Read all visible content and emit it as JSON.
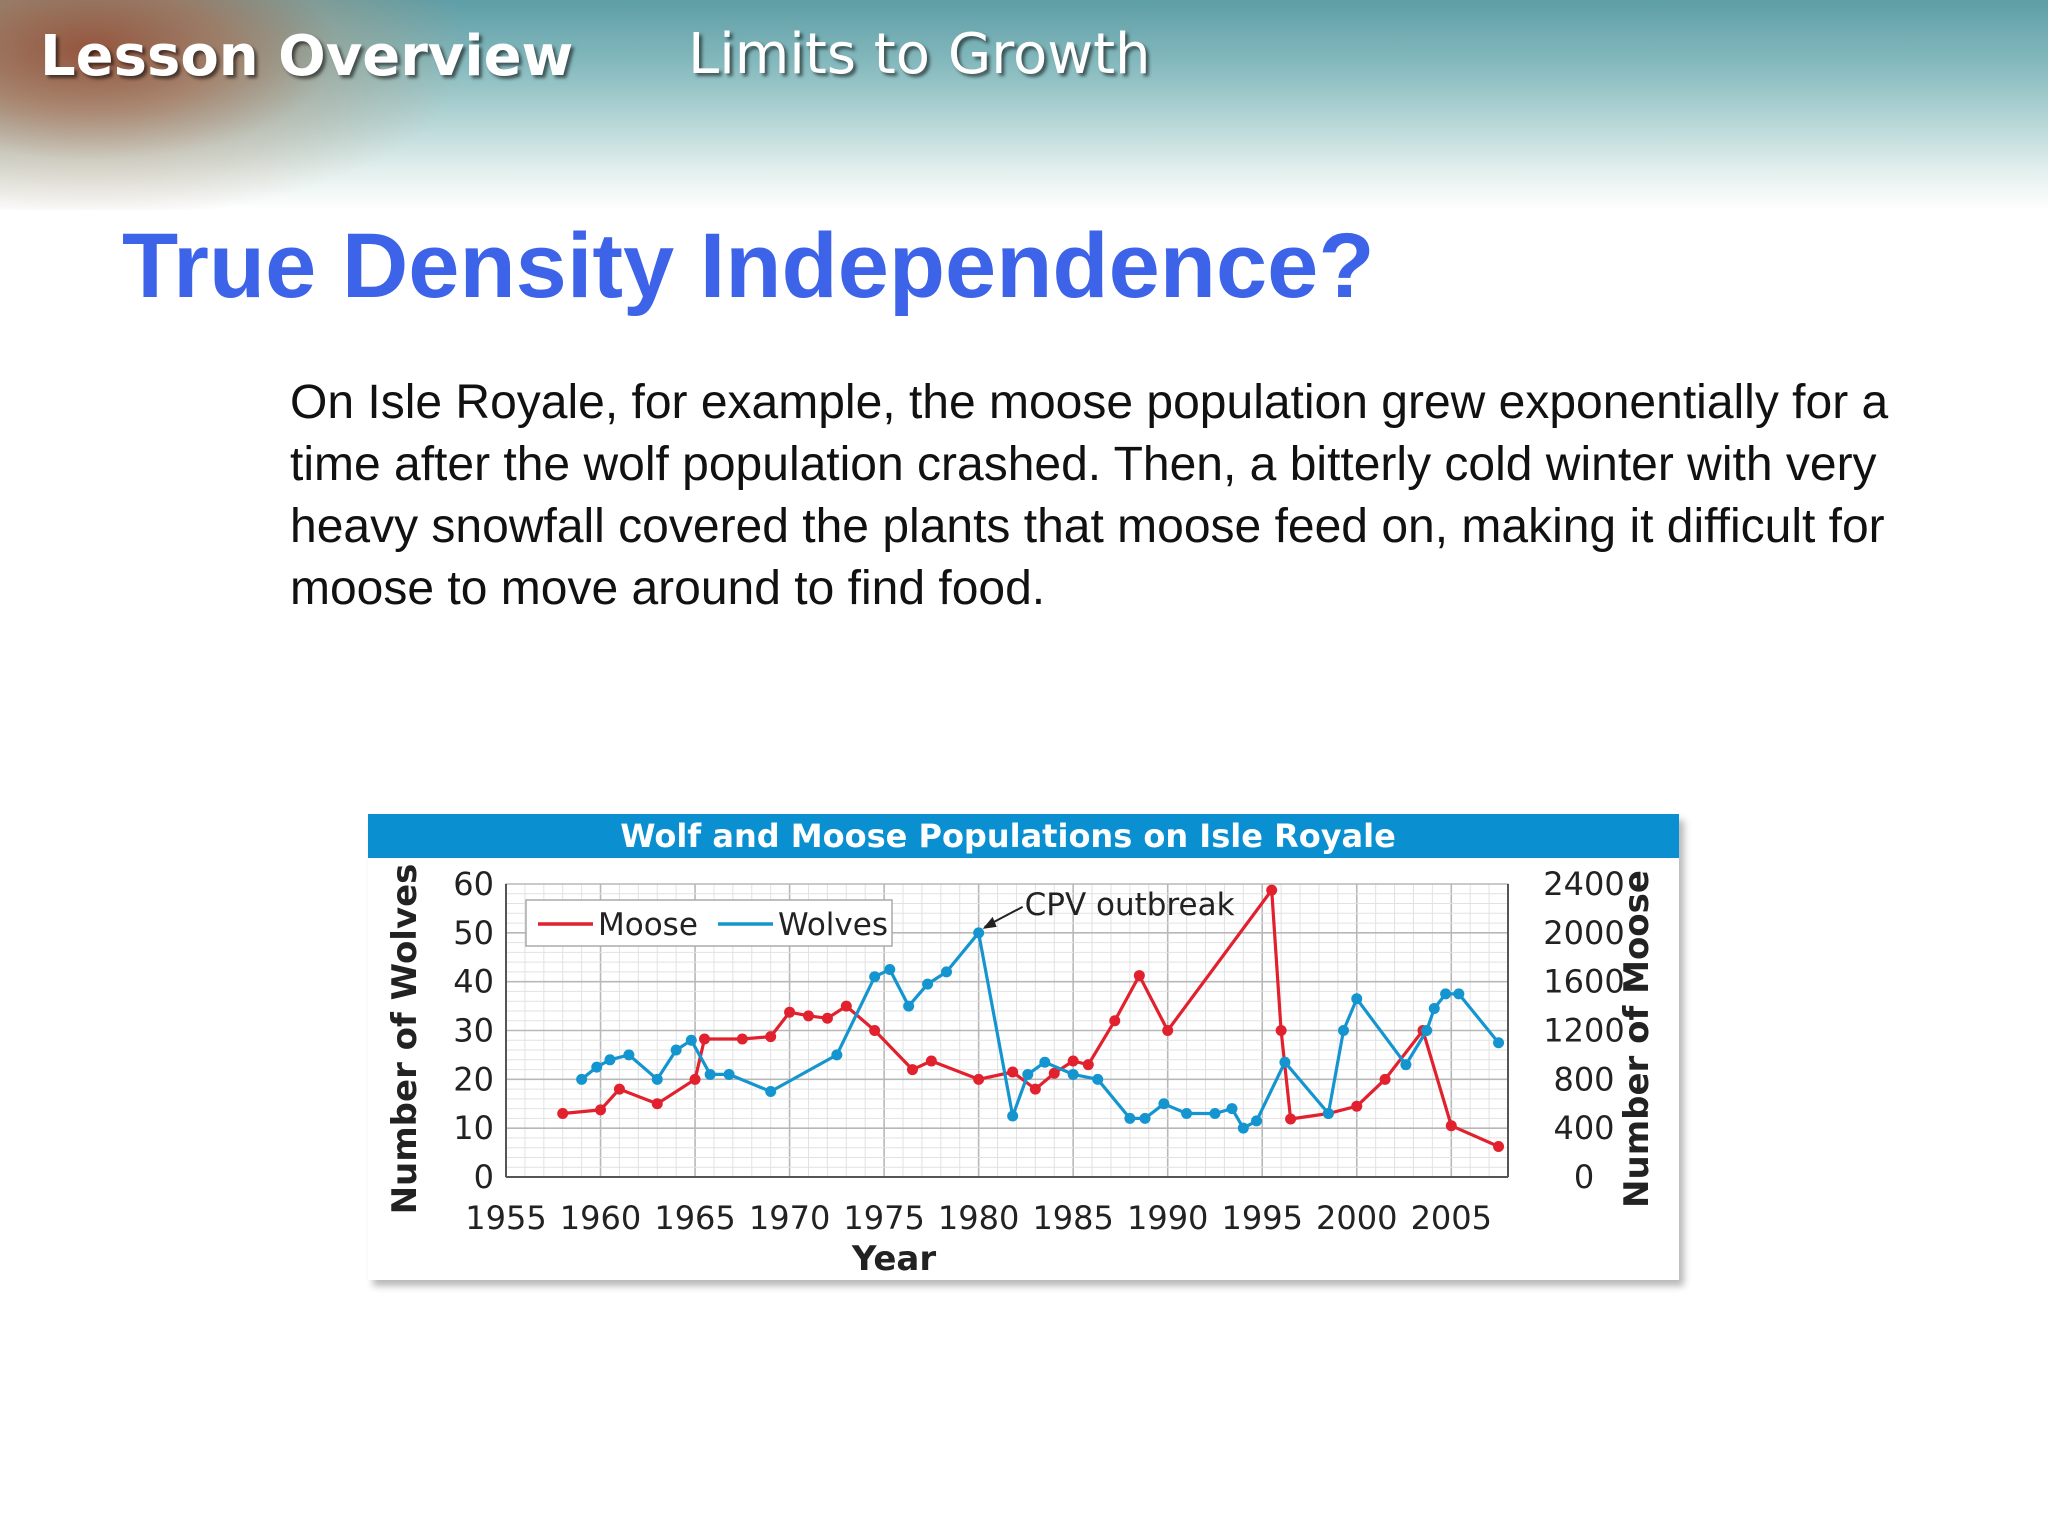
{
  "header": {
    "lesson_label": "Lesson Overview",
    "topic": "Limits to Growth"
  },
  "slide": {
    "title": "True Density Independence?",
    "body": "On Isle Royale, for example, the moose population grew exponentially for a time after the wolf population crashed. Then, a bitterly cold winter with very heavy snowfall covered the plants that moose feed on, making it difficult for moose to move around to find food."
  },
  "colors": {
    "title_blue": "#3d63e8",
    "chart_header": "#0a8fd0",
    "moose": "#e2212e",
    "wolves": "#1595cf"
  },
  "chart_data": {
    "type": "line",
    "title": "Wolf and  Moose Populations on Isle Royale",
    "xlabel": "Year",
    "ylabel_left": "Number of Wolves",
    "ylabel_right": "Number of Moose",
    "xlim": [
      1955,
      2008
    ],
    "xticks": [
      1955,
      1960,
      1965,
      1970,
      1975,
      1980,
      1985,
      1990,
      1995,
      2000,
      2005
    ],
    "ylim_left": [
      0,
      60
    ],
    "yticks_left": [
      0,
      10,
      20,
      30,
      40,
      50,
      60
    ],
    "ylim_right": [
      0,
      2400
    ],
    "yticks_right": [
      0,
      400,
      800,
      1200,
      1600,
      2000,
      2400
    ],
    "grid": true,
    "legend": "top-left",
    "annotation": {
      "text": "CPV outbreak",
      "x": 1980,
      "y": 50,
      "axis": "left"
    },
    "series": [
      {
        "name": "Moose",
        "axis": "right",
        "color": "#e2212e",
        "points": [
          [
            1958,
            520
          ],
          [
            1960,
            550
          ],
          [
            1961,
            720
          ],
          [
            1963,
            600
          ],
          [
            1965,
            800
          ],
          [
            1965.5,
            1130
          ],
          [
            1967.5,
            1130
          ],
          [
            1969,
            1150
          ],
          [
            1970,
            1350
          ],
          [
            1971,
            1320
          ],
          [
            1972,
            1300
          ],
          [
            1973,
            1400
          ],
          [
            1974.5,
            1200
          ],
          [
            1976.5,
            880
          ],
          [
            1977.5,
            950
          ],
          [
            1980,
            800
          ],
          [
            1981.8,
            860
          ],
          [
            1983,
            720
          ],
          [
            1984,
            850
          ],
          [
            1985,
            950
          ],
          [
            1985.8,
            920
          ],
          [
            1987.2,
            1280
          ],
          [
            1988.5,
            1650
          ],
          [
            1990,
            1200
          ],
          [
            1995.5,
            2350
          ],
          [
            1996,
            1200
          ],
          [
            1996.5,
            475
          ],
          [
            1998.5,
            520
          ],
          [
            2000,
            580
          ],
          [
            2001.5,
            800
          ],
          [
            2003.5,
            1200
          ],
          [
            2005,
            420
          ],
          [
            2007.5,
            250
          ]
        ]
      },
      {
        "name": "Wolves",
        "axis": "left",
        "color": "#1595cf",
        "points": [
          [
            1959,
            20
          ],
          [
            1959.8,
            22.5
          ],
          [
            1960.5,
            24
          ],
          [
            1961.5,
            25
          ],
          [
            1963,
            20
          ],
          [
            1964,
            26
          ],
          [
            1964.8,
            28
          ],
          [
            1965.8,
            21
          ],
          [
            1966.8,
            21
          ],
          [
            1969,
            17.5
          ],
          [
            1972.5,
            25
          ],
          [
            1974.5,
            41
          ],
          [
            1975.3,
            42.5
          ],
          [
            1976.3,
            35
          ],
          [
            1977.3,
            39.5
          ],
          [
            1978.3,
            42
          ],
          [
            1980,
            50
          ],
          [
            1981.8,
            12.5
          ],
          [
            1982.6,
            21
          ],
          [
            1983.5,
            23.5
          ],
          [
            1985,
            21
          ],
          [
            1986.3,
            20
          ],
          [
            1988,
            12
          ],
          [
            1988.8,
            12
          ],
          [
            1989.8,
            15
          ],
          [
            1991,
            13
          ],
          [
            1992.5,
            13
          ],
          [
            1993.4,
            14
          ],
          [
            1994,
            10
          ],
          [
            1994.7,
            11.5
          ],
          [
            1996.2,
            23.5
          ],
          [
            1998.5,
            13
          ],
          [
            1999.3,
            30
          ],
          [
            2000,
            36.5
          ],
          [
            2002.6,
            23
          ],
          [
            2003.7,
            30
          ],
          [
            2004.1,
            34.5
          ],
          [
            2004.7,
            37.5
          ],
          [
            2005.4,
            37.5
          ],
          [
            2007.5,
            27.5
          ]
        ]
      }
    ]
  }
}
